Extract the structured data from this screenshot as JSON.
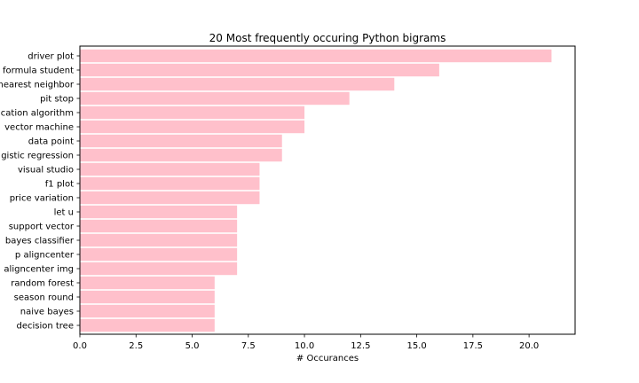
{
  "chart_data": {
    "type": "bar",
    "orientation": "horizontal",
    "title": "20 Most frequently occuring Python bigrams",
    "xlabel": "# Occurances",
    "ylabel": "",
    "categories": [
      "driver plot",
      "formula student",
      "nearest neighbor",
      "pit stop",
      "cation algorithm",
      "vector machine",
      "data point",
      "gistic regression",
      "visual studio",
      "f1 plot",
      "price variation",
      "let u",
      "support vector",
      "bayes classifier",
      "p aligncenter",
      "aligncenter img",
      "random forest",
      "season round",
      "naive bayes",
      "decision tree"
    ],
    "values": [
      21,
      16,
      14,
      12,
      10,
      10,
      9,
      9,
      8,
      8,
      8,
      7,
      7,
      7,
      7,
      7,
      6,
      6,
      6,
      6
    ],
    "xlim": [
      0,
      22.05
    ],
    "xticks": [
      0,
      2.5,
      5,
      7.5,
      10,
      12.5,
      15,
      17.5,
      20
    ],
    "xtick_labels": [
      "0.0",
      "2.5",
      "5.0",
      "7.5",
      "10.0",
      "12.5",
      "15.0",
      "17.5",
      "20.0"
    ],
    "bar_color": "#ffc0cb",
    "grid": false,
    "legend": "none"
  }
}
